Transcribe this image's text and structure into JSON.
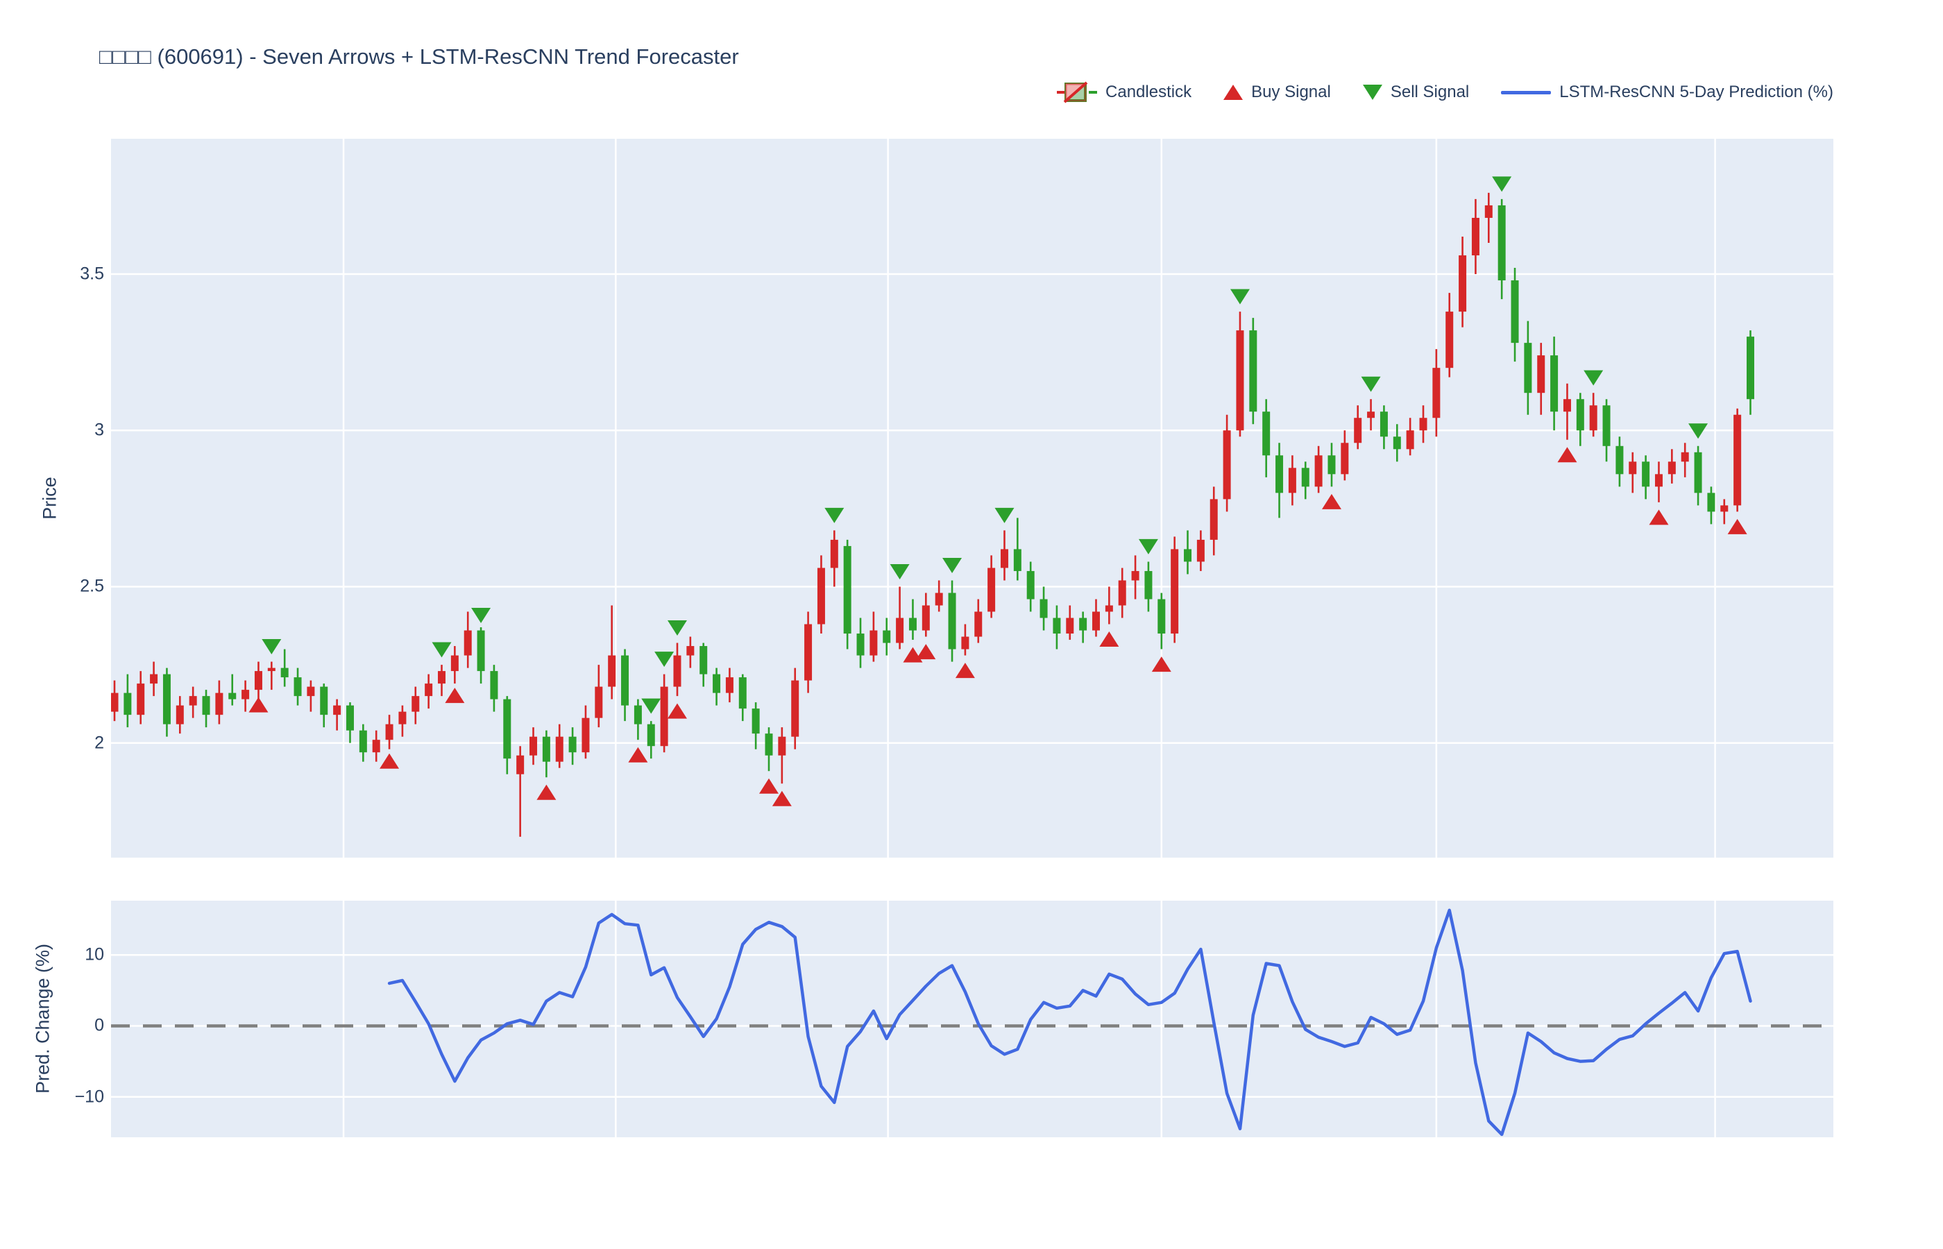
{
  "title": "□□□□ (600691) - Seven Arrows + LSTM-ResCNN Trend Forecaster",
  "legend": {
    "candlestick": "Candlestick",
    "buy": "Buy Signal",
    "sell": "Sell Signal",
    "prediction": "LSTM-ResCNN 5-Day Prediction (%)"
  },
  "icons": {
    "candlestick_legend": "candlestick-glyph",
    "buy_signal": "triangle-up",
    "sell_signal": "triangle-down",
    "prediction_line": "line-segment"
  },
  "colors": {
    "up_candle": "#d62728",
    "down_candle": "#2ca02c",
    "buy_marker": "#d62728",
    "sell_marker": "#2ca02c",
    "prediction_line": "#4169e1",
    "zero_line": "#7f7f7f",
    "plot_background": "#e5ecf6",
    "grid": "#ffffff",
    "text": "#2a3f5f",
    "page_background": "#ffffff"
  },
  "price_axis": {
    "label": "Price",
    "ticks": [
      3.5,
      3,
      2.5,
      2
    ],
    "range": [
      1.633,
      3.933
    ],
    "grid": true
  },
  "pred_axis": {
    "label": "Pred. Change (%)",
    "ticks": [
      10,
      0,
      -10
    ],
    "range": [
      -15.7,
      17.65
    ],
    "grid": true,
    "zero_line_dashed": true
  },
  "x_axis": {
    "tick_labels_visible": false,
    "note": "sequential trading sessions, no date labels shown",
    "gridline_positions_index": [
      17.5,
      38.3,
      59.1,
      80.0,
      101.0,
      122.3
    ]
  },
  "chart_data": {
    "type": "candlestick",
    "panels": [
      "price with signals",
      "predicted 5-day change (%) line"
    ],
    "n_points": 126,
    "x": "index 0..125 (unlabeled date axis)",
    "candles_ohlc": [
      [
        2.1,
        2.2,
        2.07,
        2.16
      ],
      [
        2.16,
        2.22,
        2.05,
        2.09
      ],
      [
        2.09,
        2.23,
        2.06,
        2.19
      ],
      [
        2.19,
        2.26,
        2.15,
        2.22
      ],
      [
        2.22,
        2.24,
        2.02,
        2.06
      ],
      [
        2.06,
        2.15,
        2.03,
        2.12
      ],
      [
        2.12,
        2.18,
        2.08,
        2.15
      ],
      [
        2.15,
        2.17,
        2.05,
        2.09
      ],
      [
        2.09,
        2.2,
        2.06,
        2.16
      ],
      [
        2.16,
        2.22,
        2.12,
        2.14
      ],
      [
        2.14,
        2.2,
        2.1,
        2.17
      ],
      [
        2.17,
        2.26,
        2.14,
        2.23
      ],
      [
        2.23,
        2.26,
        2.17,
        2.24
      ],
      [
        2.24,
        2.3,
        2.18,
        2.21
      ],
      [
        2.21,
        2.24,
        2.12,
        2.15
      ],
      [
        2.15,
        2.2,
        2.1,
        2.18
      ],
      [
        2.18,
        2.19,
        2.05,
        2.09
      ],
      [
        2.09,
        2.14,
        2.04,
        2.12
      ],
      [
        2.12,
        2.13,
        2.0,
        2.04
      ],
      [
        2.04,
        2.06,
        1.94,
        1.97
      ],
      [
        1.97,
        2.04,
        1.94,
        2.01
      ],
      [
        2.01,
        2.09,
        1.98,
        2.06
      ],
      [
        2.06,
        2.12,
        2.02,
        2.1
      ],
      [
        2.1,
        2.18,
        2.06,
        2.15
      ],
      [
        2.15,
        2.22,
        2.11,
        2.19
      ],
      [
        2.19,
        2.25,
        2.15,
        2.23
      ],
      [
        2.23,
        2.31,
        2.19,
        2.28
      ],
      [
        2.28,
        2.42,
        2.24,
        2.36
      ],
      [
        2.36,
        2.37,
        2.19,
        2.23
      ],
      [
        2.23,
        2.25,
        2.1,
        2.14
      ],
      [
        2.14,
        2.15,
        1.9,
        1.95
      ],
      [
        1.9,
        1.99,
        1.7,
        1.96
      ],
      [
        1.96,
        2.05,
        1.93,
        2.02
      ],
      [
        2.02,
        2.04,
        1.89,
        1.94
      ],
      [
        1.94,
        2.06,
        1.92,
        2.02
      ],
      [
        2.02,
        2.05,
        1.93,
        1.97
      ],
      [
        1.97,
        2.12,
        1.95,
        2.08
      ],
      [
        2.08,
        2.25,
        2.05,
        2.18
      ],
      [
        2.18,
        2.44,
        2.14,
        2.28
      ],
      [
        2.28,
        2.3,
        2.07,
        2.12
      ],
      [
        2.12,
        2.14,
        2.01,
        2.06
      ],
      [
        2.06,
        2.07,
        1.95,
        1.99
      ],
      [
        1.99,
        2.22,
        1.97,
        2.18
      ],
      [
        2.18,
        2.32,
        2.15,
        2.28
      ],
      [
        2.28,
        2.34,
        2.24,
        2.31
      ],
      [
        2.31,
        2.32,
        2.18,
        2.22
      ],
      [
        2.22,
        2.24,
        2.12,
        2.16
      ],
      [
        2.16,
        2.24,
        2.13,
        2.21
      ],
      [
        2.21,
        2.22,
        2.07,
        2.11
      ],
      [
        2.11,
        2.13,
        1.98,
        2.03
      ],
      [
        2.03,
        2.05,
        1.91,
        1.96
      ],
      [
        1.96,
        2.05,
        1.87,
        2.02
      ],
      [
        2.02,
        2.24,
        1.98,
        2.2
      ],
      [
        2.2,
        2.42,
        2.16,
        2.38
      ],
      [
        2.38,
        2.6,
        2.35,
        2.56
      ],
      [
        2.56,
        2.68,
        2.5,
        2.65
      ],
      [
        2.63,
        2.65,
        2.3,
        2.35
      ],
      [
        2.35,
        2.4,
        2.24,
        2.28
      ],
      [
        2.28,
        2.42,
        2.26,
        2.36
      ],
      [
        2.36,
        2.4,
        2.28,
        2.32
      ],
      [
        2.32,
        2.5,
        2.3,
        2.4
      ],
      [
        2.4,
        2.46,
        2.33,
        2.36
      ],
      [
        2.36,
        2.48,
        2.34,
        2.44
      ],
      [
        2.44,
        2.52,
        2.42,
        2.48
      ],
      [
        2.48,
        2.52,
        2.26,
        2.3
      ],
      [
        2.3,
        2.38,
        2.28,
        2.34
      ],
      [
        2.34,
        2.46,
        2.32,
        2.42
      ],
      [
        2.42,
        2.6,
        2.4,
        2.56
      ],
      [
        2.56,
        2.68,
        2.52,
        2.62
      ],
      [
        2.62,
        2.72,
        2.52,
        2.55
      ],
      [
        2.55,
        2.58,
        2.42,
        2.46
      ],
      [
        2.46,
        2.5,
        2.36,
        2.4
      ],
      [
        2.4,
        2.44,
        2.3,
        2.35
      ],
      [
        2.35,
        2.44,
        2.33,
        2.4
      ],
      [
        2.4,
        2.42,
        2.32,
        2.36
      ],
      [
        2.36,
        2.46,
        2.34,
        2.42
      ],
      [
        2.42,
        2.5,
        2.38,
        2.44
      ],
      [
        2.44,
        2.56,
        2.4,
        2.52
      ],
      [
        2.52,
        2.6,
        2.46,
        2.55
      ],
      [
        2.55,
        2.58,
        2.42,
        2.46
      ],
      [
        2.46,
        2.48,
        2.3,
        2.35
      ],
      [
        2.35,
        2.66,
        2.32,
        2.62
      ],
      [
        2.62,
        2.68,
        2.54,
        2.58
      ],
      [
        2.58,
        2.68,
        2.55,
        2.65
      ],
      [
        2.65,
        2.82,
        2.6,
        2.78
      ],
      [
        2.78,
        3.05,
        2.74,
        3.0
      ],
      [
        3.0,
        3.38,
        2.98,
        3.32
      ],
      [
        3.32,
        3.36,
        3.02,
        3.06
      ],
      [
        3.06,
        3.1,
        2.85,
        2.92
      ],
      [
        2.92,
        2.96,
        2.72,
        2.8
      ],
      [
        2.8,
        2.92,
        2.76,
        2.88
      ],
      [
        2.88,
        2.9,
        2.78,
        2.82
      ],
      [
        2.82,
        2.95,
        2.8,
        2.92
      ],
      [
        2.92,
        2.96,
        2.82,
        2.86
      ],
      [
        2.86,
        3.0,
        2.84,
        2.96
      ],
      [
        2.96,
        3.08,
        2.94,
        3.04
      ],
      [
        3.04,
        3.1,
        3.0,
        3.06
      ],
      [
        3.06,
        3.08,
        2.94,
        2.98
      ],
      [
        2.98,
        3.02,
        2.9,
        2.94
      ],
      [
        2.94,
        3.04,
        2.92,
        3.0
      ],
      [
        3.0,
        3.08,
        2.96,
        3.04
      ],
      [
        3.04,
        3.26,
        2.98,
        3.2
      ],
      [
        3.2,
        3.44,
        3.17,
        3.38
      ],
      [
        3.38,
        3.62,
        3.33,
        3.56
      ],
      [
        3.56,
        3.74,
        3.5,
        3.68
      ],
      [
        3.68,
        3.76,
        3.6,
        3.72
      ],
      [
        3.72,
        3.74,
        3.42,
        3.48
      ],
      [
        3.48,
        3.52,
        3.22,
        3.28
      ],
      [
        3.28,
        3.35,
        3.05,
        3.12
      ],
      [
        3.12,
        3.28,
        3.05,
        3.24
      ],
      [
        3.24,
        3.3,
        3.0,
        3.06
      ],
      [
        3.06,
        3.15,
        2.97,
        3.1
      ],
      [
        3.1,
        3.12,
        2.95,
        3.0
      ],
      [
        3.0,
        3.12,
        2.98,
        3.08
      ],
      [
        3.08,
        3.1,
        2.9,
        2.95
      ],
      [
        2.95,
        2.98,
        2.82,
        2.86
      ],
      [
        2.86,
        2.93,
        2.8,
        2.9
      ],
      [
        2.9,
        2.92,
        2.78,
        2.82
      ],
      [
        2.82,
        2.9,
        2.77,
        2.86
      ],
      [
        2.86,
        2.94,
        2.83,
        2.9
      ],
      [
        2.9,
        2.96,
        2.85,
        2.93
      ],
      [
        2.93,
        2.95,
        2.76,
        2.8
      ],
      [
        2.8,
        2.82,
        2.7,
        2.74
      ],
      [
        2.74,
        2.78,
        2.7,
        2.76
      ],
      [
        2.76,
        3.07,
        2.74,
        3.05
      ],
      [
        3.3,
        3.32,
        3.05,
        3.1
      ]
    ],
    "buy_signals": [
      [
        11,
        2.12
      ],
      [
        21,
        1.94
      ],
      [
        26,
        2.15
      ],
      [
        33,
        1.84
      ],
      [
        40,
        1.96
      ],
      [
        43,
        2.1
      ],
      [
        50,
        1.86
      ],
      [
        51,
        1.82
      ],
      [
        61,
        2.28
      ],
      [
        62,
        2.29
      ],
      [
        65,
        2.23
      ],
      [
        76,
        2.33
      ],
      [
        80,
        2.25
      ],
      [
        93,
        2.77
      ],
      [
        111,
        2.92
      ],
      [
        118,
        2.72
      ],
      [
        124,
        2.69
      ]
    ],
    "sell_signals": [
      [
        12,
        2.31
      ],
      [
        25,
        2.3
      ],
      [
        28,
        2.41
      ],
      [
        41,
        2.12
      ],
      [
        42,
        2.27
      ],
      [
        43,
        2.37
      ],
      [
        55,
        2.73
      ],
      [
        60,
        2.55
      ],
      [
        64,
        2.57
      ],
      [
        68,
        2.73
      ],
      [
        79,
        2.63
      ],
      [
        86,
        3.43
      ],
      [
        96,
        3.15
      ],
      [
        106,
        3.79
      ],
      [
        113,
        3.17
      ],
      [
        121,
        3.0
      ]
    ],
    "prediction_pct": [
      null,
      null,
      null,
      null,
      null,
      null,
      null,
      null,
      null,
      null,
      null,
      null,
      null,
      null,
      null,
      null,
      null,
      null,
      null,
      null,
      null,
      6.0,
      6.4,
      3.4,
      0.3,
      -4.0,
      -7.8,
      -4.5,
      -2.0,
      -1.0,
      0.3,
      0.8,
      0.2,
      3.5,
      4.7,
      4.1,
      8.3,
      14.5,
      15.7,
      14.4,
      14.2,
      7.2,
      8.2,
      4.0,
      1.3,
      -1.5,
      1.0,
      5.5,
      11.5,
      13.6,
      14.6,
      14.0,
      12.5,
      -1.5,
      -8.5,
      -10.8,
      -2.9,
      -0.8,
      2.1,
      -1.8,
      1.6,
      3.6,
      5.6,
      7.4,
      8.5,
      4.8,
      0.3,
      -2.8,
      -4.0,
      -3.3,
      0.9,
      3.3,
      2.5,
      2.8,
      5.0,
      4.2,
      7.3,
      6.6,
      4.5,
      3.0,
      3.3,
      4.6,
      8.0,
      10.8,
      0.5,
      -9.5,
      -14.5,
      1.5,
      8.8,
      8.5,
      3.4,
      -0.5,
      -1.6,
      -2.2,
      -2.9,
      -2.4,
      1.2,
      0.3,
      -1.2,
      -0.6,
      3.5,
      11.0,
      16.3,
      7.8,
      -5.2,
      -13.4,
      -15.3,
      -9.5,
      -1.0,
      -2.2,
      -3.8,
      -4.6,
      -5.0,
      -4.9,
      -3.3,
      -1.9,
      -1.4,
      0.3,
      1.8,
      3.2,
      4.7,
      2.1,
      6.8,
      10.2,
      10.5,
      3.5
    ],
    "legend_position": "top-right horizontal",
    "subplot_ratio": "price panel ~3x taller than prediction panel"
  }
}
